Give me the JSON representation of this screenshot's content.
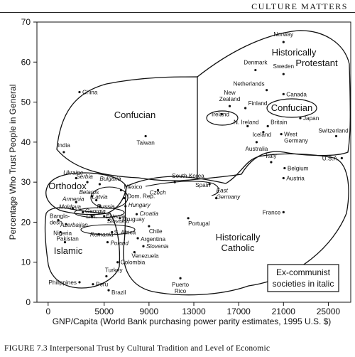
{
  "header": {
    "running_title": "CULTURE MATTERS"
  },
  "caption": {
    "text": "FIGURE 7.3   Interpersonal Trust by Cultural Tradition and Level of Economic"
  },
  "chart_data": {
    "type": "scatter",
    "xlabel": "GNP/Capita (World Bank purchasing power parity estimates, 1995 U.S. $)",
    "ylabel": "Percentage Who Trust People in General",
    "xlim": [
      -1000,
      27000
    ],
    "ylim": [
      0,
      70
    ],
    "x_ticks": [
      0,
      5000,
      9000,
      13000,
      17000,
      21000,
      25000
    ],
    "y_ticks": [
      0,
      10,
      20,
      30,
      40,
      50,
      60,
      70
    ],
    "y_tick_labels": [
      "0",
      "10",
      "20",
      "30",
      "40",
      "50",
      "60",
      "70"
    ],
    "grid": false,
    "points": [
      {
        "name": "Norway",
        "x": 21000,
        "y": 65,
        "italic": false
      },
      {
        "name": "Denmark",
        "x": 18500,
        "y": 58,
        "italic": false
      },
      {
        "name": "Sweden",
        "x": 21000,
        "y": 57,
        "italic": false
      },
      {
        "name": "Netherlands",
        "x": 19500,
        "y": 53,
        "italic": false
      },
      {
        "name": "Canada",
        "x": 21000,
        "y": 52,
        "italic": false
      },
      {
        "name": "New Zealand",
        "x": 16200,
        "y": 49,
        "italic": false
      },
      {
        "name": "Finland",
        "x": 17600,
        "y": 48.5,
        "italic": false
      },
      {
        "name": "Ireland",
        "x": 15500,
        "y": 47,
        "italic": false
      },
      {
        "name": "Japan",
        "x": 22500,
        "y": 46,
        "italic": false
      },
      {
        "name": "N. Ireland",
        "x": 17800,
        "y": 44,
        "italic": false
      },
      {
        "name": "Britain",
        "x": 19600,
        "y": 44,
        "italic": false
      },
      {
        "name": "Iceland",
        "x": 19200,
        "y": 42.5,
        "italic": false
      },
      {
        "name": "West Germany",
        "x": 20800,
        "y": 42,
        "italic": false
      },
      {
        "name": "Switzerland",
        "x": 25700,
        "y": 41.5,
        "italic": false
      },
      {
        "name": "Australia",
        "x": 18600,
        "y": 40,
        "italic": false
      },
      {
        "name": "U.S.A.",
        "x": 26200,
        "y": 36,
        "italic": false
      },
      {
        "name": "China",
        "x": 2800,
        "y": 52.5,
        "italic": false
      },
      {
        "name": "India",
        "x": 1400,
        "y": 37.5,
        "italic": false
      },
      {
        "name": "Taiwan",
        "x": 8700,
        "y": 41.5,
        "italic": false
      },
      {
        "name": "South Korea",
        "x": 11300,
        "y": 30,
        "italic": false
      },
      {
        "name": "Italy",
        "x": 19900,
        "y": 35,
        "italic": false
      },
      {
        "name": "Belgium",
        "x": 21100,
        "y": 33.5,
        "italic": false
      },
      {
        "name": "Austria",
        "x": 21000,
        "y": 31,
        "italic": false
      },
      {
        "name": "Spain",
        "x": 14400,
        "y": 29.5,
        "italic": false
      },
      {
        "name": "East Germany",
        "x": 15000,
        "y": 26,
        "italic": true
      },
      {
        "name": "France",
        "x": 21000,
        "y": 22.5,
        "italic": false
      },
      {
        "name": "Ukraine",
        "x": 2500,
        "y": 31,
        "italic": true
      },
      {
        "name": "Serbia",
        "x": 3500,
        "y": 30,
        "italic": true
      },
      {
        "name": "Bulgaria",
        "x": 4600,
        "y": 29.5,
        "italic": true
      },
      {
        "name": "Belarus",
        "x": 3900,
        "y": 26.5,
        "italic": true
      },
      {
        "name": "Armenia",
        "x": 2500,
        "y": 25,
        "italic": true
      },
      {
        "name": "Moldova",
        "x": 2200,
        "y": 23.5,
        "italic": true
      },
      {
        "name": "Georgia",
        "x": 3100,
        "y": 22.5,
        "italic": true
      },
      {
        "name": "Latvia",
        "x": 4300,
        "y": 25.5,
        "italic": true
      },
      {
        "name": "Russia",
        "x": 4600,
        "y": 24,
        "italic": true
      },
      {
        "name": "Mexico",
        "x": 6500,
        "y": 28,
        "italic": false
      },
      {
        "name": "Czech",
        "x": 9800,
        "y": 28,
        "italic": true
      },
      {
        "name": "Dom. Rep.",
        "x": 6800,
        "y": 26,
        "italic": false
      },
      {
        "name": "Hungary",
        "x": 6900,
        "y": 24,
        "italic": true
      },
      {
        "name": "Croatia",
        "x": 7900,
        "y": 22,
        "italic": true
      },
      {
        "name": "Lith.",
        "x": 3900,
        "y": 21.5,
        "italic": true
      },
      {
        "name": "Estonia",
        "x": 5000,
        "y": 21.5,
        "italic": true
      },
      {
        "name": "Bangladesh",
        "x": 900,
        "y": 20.5,
        "italic": false
      },
      {
        "name": "Azerbaijan",
        "x": 1600,
        "y": 19.5,
        "italic": true
      },
      {
        "name": "Slovakia",
        "x": 5400,
        "y": 20.5,
        "italic": true
      },
      {
        "name": "Uruguay",
        "x": 6400,
        "y": 21,
        "italic": false
      },
      {
        "name": "Nigeria",
        "x": 1100,
        "y": 17.5,
        "italic": false
      },
      {
        "name": "Romania",
        "x": 4500,
        "y": 17,
        "italic": true
      },
      {
        "name": "S. Africa",
        "x": 5700,
        "y": 17.5,
        "italic": false
      },
      {
        "name": "Pakistan",
        "x": 1500,
        "y": 15,
        "italic": false
      },
      {
        "name": "Poland",
        "x": 5300,
        "y": 15,
        "italic": true
      },
      {
        "name": "Chile",
        "x": 9000,
        "y": 19,
        "italic": false
      },
      {
        "name": "Portugal",
        "x": 12500,
        "y": 21,
        "italic": false
      },
      {
        "name": "Argentina",
        "x": 8000,
        "y": 16,
        "italic": false
      },
      {
        "name": "Slovenia",
        "x": 8500,
        "y": 14,
        "italic": true
      },
      {
        "name": "Venezuela",
        "x": 7700,
        "y": 12.5,
        "italic": false
      },
      {
        "name": "Colombia",
        "x": 6200,
        "y": 10,
        "italic": false
      },
      {
        "name": "Turkey",
        "x": 5200,
        "y": 6.5,
        "italic": false
      },
      {
        "name": "Philippines",
        "x": 2800,
        "y": 5,
        "italic": false
      },
      {
        "name": "Peru",
        "x": 4000,
        "y": 4.5,
        "italic": false
      },
      {
        "name": "Brazil",
        "x": 5400,
        "y": 3,
        "italic": false
      },
      {
        "name": "Puerto Rico",
        "x": 11800,
        "y": 6,
        "italic": false
      }
    ],
    "groups": [
      {
        "name": "Historically Protestant",
        "lines": [
          "Historically",
          "Protestant"
        ]
      },
      {
        "name": "Confucian",
        "lines": [
          "Confucian"
        ]
      },
      {
        "name": "Confucian (Japan-Ireland region)",
        "lines": [
          "Confucian"
        ]
      },
      {
        "name": "Orthodox",
        "lines": [
          "Orthodox"
        ]
      },
      {
        "name": "Islamic",
        "lines": [
          "Islamic"
        ]
      },
      {
        "name": "Historically Catholic",
        "lines": [
          "Historically",
          "Catholic"
        ]
      }
    ],
    "legend_note": {
      "lines": [
        "Ex-communist",
        "societies in italic"
      ]
    }
  }
}
